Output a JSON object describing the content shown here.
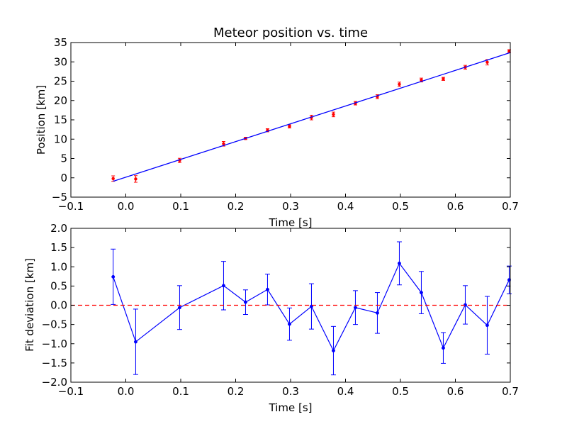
{
  "chart_data": [
    {
      "type": "scatter",
      "title": "Meteor position vs. time",
      "xlabel": "Time [s]",
      "ylabel": "Position [km]",
      "xlim": [
        -0.1,
        0.7
      ],
      "ylim": [
        -5,
        35
      ],
      "xticks": [
        "−0.1",
        "0.0",
        "0.1",
        "0.2",
        "0.3",
        "0.4",
        "0.5",
        "0.6",
        "0.7"
      ],
      "yticks": [
        "−5",
        "0",
        "5",
        "10",
        "15",
        "20",
        "25",
        "30",
        "35"
      ],
      "grid": false,
      "legend": "none",
      "series": [
        {
          "kind": "errorbar-points",
          "color": "#ff0000",
          "x": [
            -0.023,
            0.018,
            0.098,
            0.178,
            0.218,
            0.258,
            0.298,
            0.338,
            0.378,
            0.418,
            0.458,
            0.498,
            0.538,
            0.578,
            0.618,
            0.658,
            0.698
          ],
          "y": [
            -0.2,
            -0.3,
            4.5,
            8.8,
            10.2,
            12.3,
            13.3,
            15.6,
            16.4,
            19.3,
            21.0,
            24.2,
            25.3,
            25.6,
            28.6,
            29.9,
            32.8
          ],
          "yerr": [
            0.7,
            0.85,
            0.55,
            0.6,
            0.3,
            0.4,
            0.4,
            0.6,
            0.6,
            0.45,
            0.5,
            0.55,
            0.5,
            0.4,
            0.5,
            0.7,
            0.35
          ]
        },
        {
          "kind": "fit-line",
          "color": "#0000ff",
          "x": [
            -0.023,
            0.7
          ],
          "y": [
            -0.9,
            32.4
          ]
        }
      ]
    },
    {
      "type": "line",
      "xlabel": "Time [s]",
      "ylabel": "Fit deviation [km]",
      "xlim": [
        -0.1,
        0.7
      ],
      "ylim": [
        -2.0,
        2.0
      ],
      "xticks": [
        "−0.1",
        "0.0",
        "0.1",
        "0.2",
        "0.3",
        "0.4",
        "0.5",
        "0.6",
        "0.7"
      ],
      "yticks": [
        "−2.0",
        "−1.5",
        "−1.0",
        "−0.5",
        "0.0",
        "0.5",
        "1.0",
        "1.5",
        "2.0"
      ],
      "grid": false,
      "legend": "none",
      "series": [
        {
          "kind": "errorbar-line",
          "color": "#0000ff",
          "x": [
            -0.023,
            0.018,
            0.098,
            0.178,
            0.218,
            0.258,
            0.298,
            0.338,
            0.378,
            0.418,
            0.458,
            0.498,
            0.538,
            0.578,
            0.618,
            0.658,
            0.698
          ],
          "y": [
            0.74,
            -0.95,
            -0.06,
            0.51,
            0.08,
            0.41,
            -0.49,
            -0.03,
            -1.18,
            -0.06,
            -0.2,
            1.09,
            0.33,
            -1.11,
            0.01,
            -0.52,
            0.66
          ],
          "yerr": [
            0.72,
            0.85,
            0.57,
            0.63,
            0.32,
            0.4,
            0.42,
            0.59,
            0.63,
            0.44,
            0.53,
            0.56,
            0.55,
            0.4,
            0.5,
            0.75,
            0.36
          ]
        },
        {
          "kind": "reference-line",
          "color": "#ff0000",
          "style": "dashed",
          "y": 0.0
        }
      ]
    }
  ]
}
